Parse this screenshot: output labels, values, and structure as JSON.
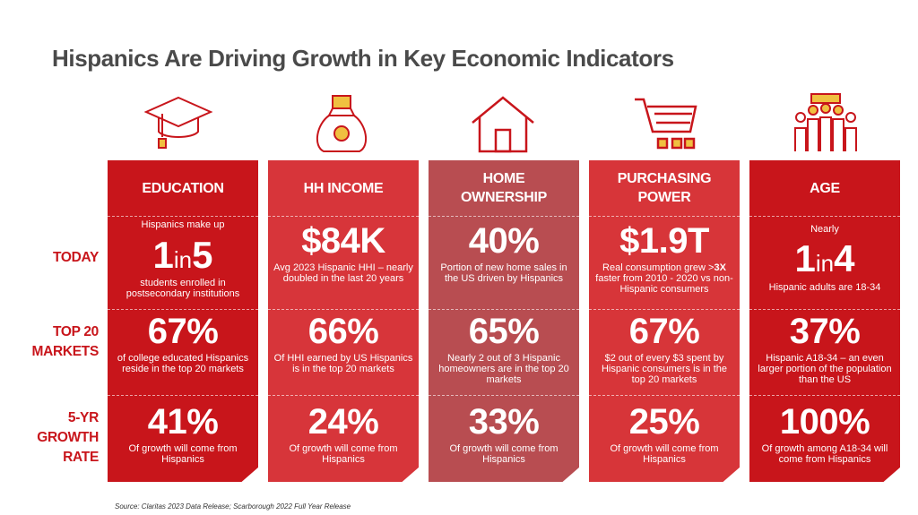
{
  "title": "Hispanics Are Driving Growth in Key Economic Indicators",
  "row_labels": {
    "today": "TODAY",
    "top20": "TOP 20\nMARKETS",
    "growth": "5-YR\nGROWTH\nRATE"
  },
  "colors": {
    "accent": "#c8151b",
    "col_education": "#c8151b",
    "col_income": "#d7353a",
    "col_home": "#b84d51",
    "col_purchasing": "#d73539",
    "col_age": "#c8151b"
  },
  "columns": [
    {
      "icon": "graduation-cap-icon",
      "header": "EDUCATION",
      "today": {
        "pre": "Hispanics make up",
        "num_a": "1",
        "word": "in",
        "num_b": "5",
        "post": "students enrolled in postsecondary institutions"
      },
      "top20": {
        "value": "67%",
        "desc": "of college educated Hispanics reside in the top 20 markets"
      },
      "growth": {
        "value": "41%",
        "desc": "Of growth will come from Hispanics"
      }
    },
    {
      "icon": "money-bag-icon",
      "header": "HH INCOME",
      "today": {
        "value": "$84K",
        "desc": "Avg 2023 Hispanic HHI – nearly doubled in the last 20 years"
      },
      "top20": {
        "value": "66%",
        "desc": "Of HHI earned by US Hispanics is in the top 20 markets"
      },
      "growth": {
        "value": "24%",
        "desc": "Of growth will come from Hispanics"
      }
    },
    {
      "icon": "house-icon",
      "header": "HOME\nOWNERSHIP",
      "today": {
        "value": "40%",
        "desc": "Portion of new home sales in the US driven by Hispanics"
      },
      "top20": {
        "value": "65%",
        "desc": "Nearly 2 out of 3 Hispanic homeowners are in the top 20 markets"
      },
      "growth": {
        "value": "33%",
        "desc": "Of growth will come from Hispanics"
      }
    },
    {
      "icon": "shopping-cart-icon",
      "header": "PURCHASING\nPOWER",
      "today": {
        "value": "$1.9T",
        "desc_a": "Real consumption grew >",
        "desc_hl": "3X",
        "desc_b": " faster from 2010 - 2020 vs non-Hispanic consumers"
      },
      "top20": {
        "value": "67%",
        "desc": "$2 out of every $3 spent by Hispanic consumers is in the top 20 markets"
      },
      "growth": {
        "value": "25%",
        "desc": "Of growth will come from Hispanics"
      }
    },
    {
      "icon": "people-group-icon",
      "header": "AGE",
      "today": {
        "pre": "Nearly",
        "num_a": "1",
        "word": "in",
        "num_b": "4",
        "post": "Hispanic adults are 18-34"
      },
      "top20": {
        "value": "37%",
        "desc": "Hispanic A18-34 – an even larger portion of the population than the US"
      },
      "growth": {
        "value": "100%",
        "desc": "Of growth among A18-34 will come from Hispanics"
      }
    }
  ],
  "source": "Source: Claritas 2023 Data Release; Scarborough 2022 Full Year Release"
}
